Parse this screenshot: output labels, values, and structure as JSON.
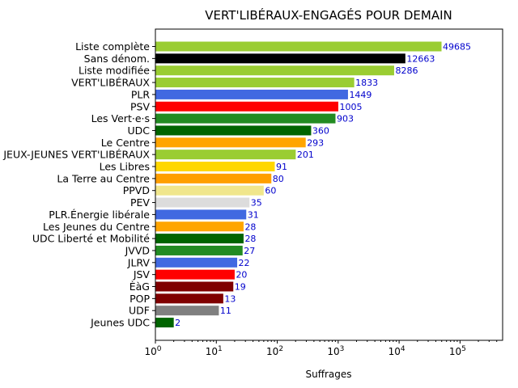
{
  "chart_data": {
    "type": "bar",
    "orientation": "horizontal",
    "title": "VERT'LIBÉRAUX-ENGAGÉS POUR DEMAIN",
    "xlabel": "Suffrages",
    "ylabel": "",
    "xscale": "log",
    "xlim": [
      1,
      500000
    ],
    "xticks": [
      {
        "base": "10",
        "exp": "0"
      },
      {
        "base": "10",
        "exp": "1"
      },
      {
        "base": "10",
        "exp": "2"
      },
      {
        "base": "10",
        "exp": "3"
      },
      {
        "base": "10",
        "exp": "4"
      },
      {
        "base": "10",
        "exp": "5"
      }
    ],
    "grid": false,
    "categories": [
      "Liste complète",
      "Sans dénom.",
      "Liste modifiée",
      "VERT'LIBÉRAUX",
      "PLR",
      "PSV",
      "Les Vert·e·s",
      "UDC",
      "Le Centre",
      "JEUX-JEUNES VERT'LIBÉRAUX",
      "Les Libres",
      "La Terre au Centre",
      "PPVD",
      "PEV",
      "PLR.Énergie libérale",
      "Les Jeunes du Centre",
      "UDC Liberté et Mobilité",
      "JVVD",
      "JLRV",
      "JSV",
      "ÈàG",
      "POP",
      "UDF",
      "Jeunes UDC"
    ],
    "values": [
      49685,
      12663,
      8286,
      1833,
      1449,
      1005,
      903,
      360,
      293,
      201,
      91,
      80,
      60,
      35,
      31,
      28,
      28,
      27,
      22,
      20,
      19,
      13,
      11,
      2
    ],
    "value_labels": [
      "49685",
      "12663",
      "8286",
      "1833",
      "1449",
      "1005",
      "903",
      "360",
      "293",
      "201",
      "91",
      "80",
      "60",
      "35",
      "31",
      "28",
      "28",
      "27",
      "22",
      "20",
      "19",
      "13",
      "11",
      "2"
    ],
    "colors": [
      "#9acd32",
      "#000000",
      "#9acd32",
      "#9acd32",
      "#4169e1",
      "#ff0000",
      "#228b22",
      "#006400",
      "#ffa500",
      "#9acd32",
      "#ffd700",
      "#ff9f00",
      "#f0e68c",
      "#dcdcdc",
      "#4169e1",
      "#ffa500",
      "#006400",
      "#228b22",
      "#4169e1",
      "#ff0000",
      "#800000",
      "#800000",
      "#808080",
      "#006400"
    ]
  }
}
